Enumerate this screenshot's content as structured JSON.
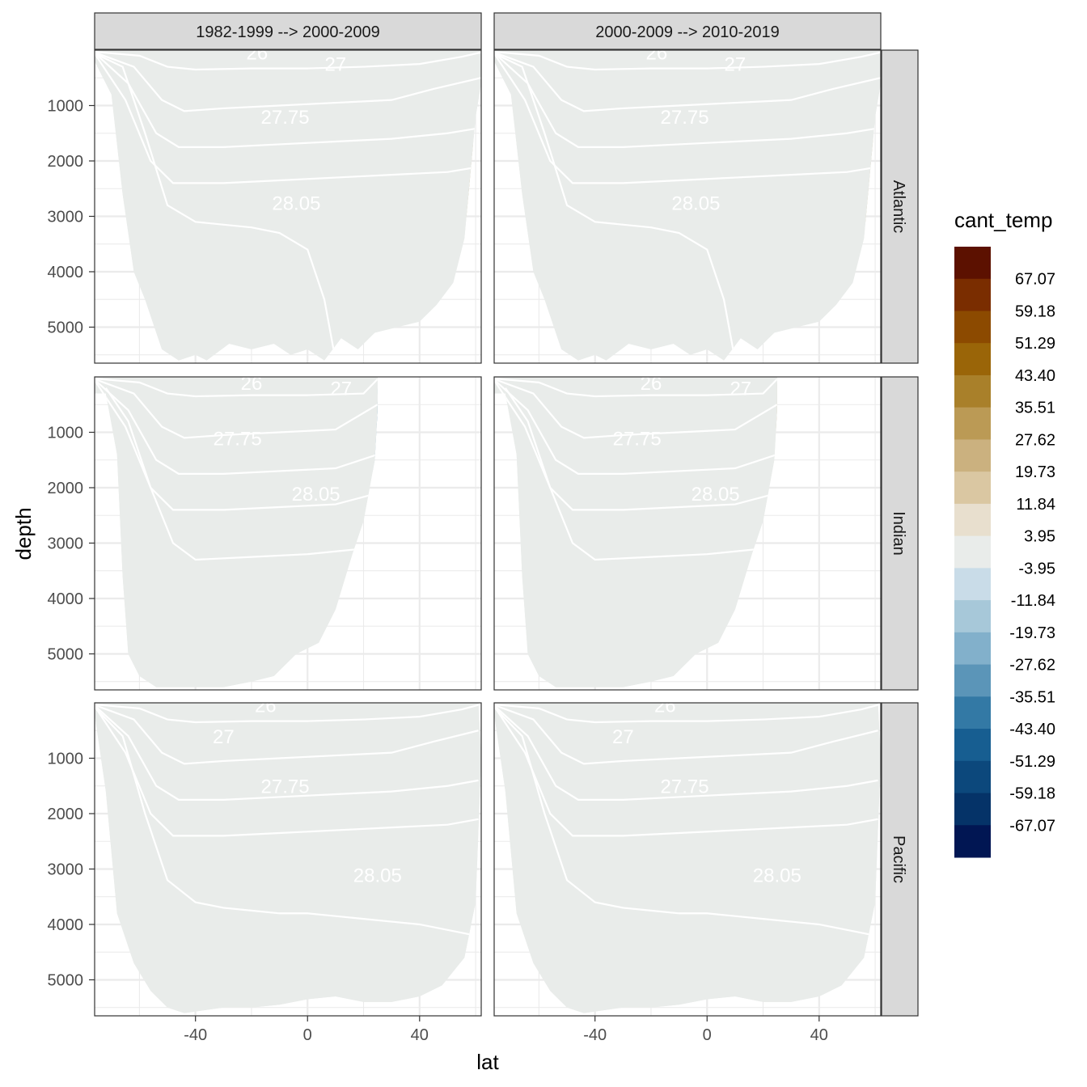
{
  "chart_data": {
    "type": "heatmap",
    "title": "",
    "xlabel": "lat",
    "ylabel": "depth",
    "xlim": [
      -76,
      62
    ],
    "ylim": [
      5650,
      0
    ],
    "x_ticks": [
      -40,
      0,
      40
    ],
    "x_tick_labels": [
      "-40",
      "0",
      "40"
    ],
    "y_ticks": [
      1000,
      2000,
      3000,
      4000,
      5000
    ],
    "y_tick_labels": [
      "1000",
      "2000",
      "3000",
      "4000",
      "5000"
    ],
    "grid": true,
    "facet_columns": [
      "1982-1999 --> 2000-2009",
      "2000-2009 --> 2010-2019"
    ],
    "facet_rows": [
      "Atlantic",
      "Indian",
      "Pacific"
    ],
    "legend": {
      "title": "cant_temp",
      "position": "right",
      "breaks": [
        "67.07",
        "59.18",
        "51.29",
        "43.40",
        "35.51",
        "27.62",
        "19.73",
        "11.84",
        "3.95",
        "-3.95",
        "-11.84",
        "-19.73",
        "-27.62",
        "-35.51",
        "-43.40",
        "-51.29",
        "-59.18",
        "-67.07"
      ],
      "colors": [
        "#5c1100",
        "#7a2d00",
        "#8c4a00",
        "#9a6508",
        "#a9802a",
        "#bb9a55",
        "#cbb17f",
        "#dac7a2",
        "#e8dfce",
        "#e9ecea",
        "#c9dce8",
        "#a7c8d9",
        "#82b0cb",
        "#5b95b8",
        "#3379a5",
        "#175e91",
        "#0c487c",
        "#053368",
        "#011653"
      ]
    },
    "density_contour_labels": [
      "26",
      "27",
      "27.75",
      "28.05"
    ],
    "panels": [
      {
        "row": "Atlantic",
        "col": "1982-1999 --> 2000-2009"
      },
      {
        "row": "Atlantic",
        "col": "2000-2009 --> 2010-2019"
      },
      {
        "row": "Indian",
        "col": "1982-1999 --> 2000-2009"
      },
      {
        "row": "Indian",
        "col": "2000-2009 --> 2010-2019"
      },
      {
        "row": "Pacific",
        "col": "1982-1999 --> 2000-2009"
      },
      {
        "row": "Pacific",
        "col": "2000-2009 --> 2010-2019"
      }
    ]
  }
}
